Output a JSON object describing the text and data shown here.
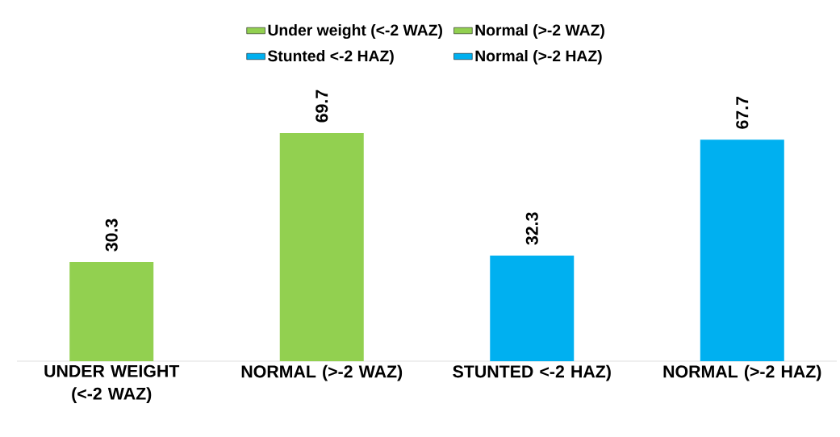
{
  "chart_data": {
    "type": "bar",
    "categories": [
      "UNDER WEIGHT (<-2 WAZ)",
      "NORMAL (>-2 WAZ)",
      "STUNTED <-2 HAZ)",
      "NORMAL (>-2 HAZ)"
    ],
    "series": [
      {
        "name": "Under weight (<-2 WAZ)",
        "color": "#92d050",
        "values": [
          30.3,
          null,
          null,
          null
        ]
      },
      {
        "name": "Normal (>-2 WAZ)",
        "color": "#92d050",
        "values": [
          null,
          69.7,
          null,
          null
        ]
      },
      {
        "name": "Stunted <-2 HAZ)",
        "color": "#00b0f0",
        "values": [
          null,
          null,
          32.3,
          null
        ]
      },
      {
        "name": "Normal (>-2 HAZ)",
        "color": "#00b0f0",
        "values": [
          null,
          null,
          null,
          67.7
        ]
      }
    ],
    "data_labels": true,
    "legend": "top"
  }
}
